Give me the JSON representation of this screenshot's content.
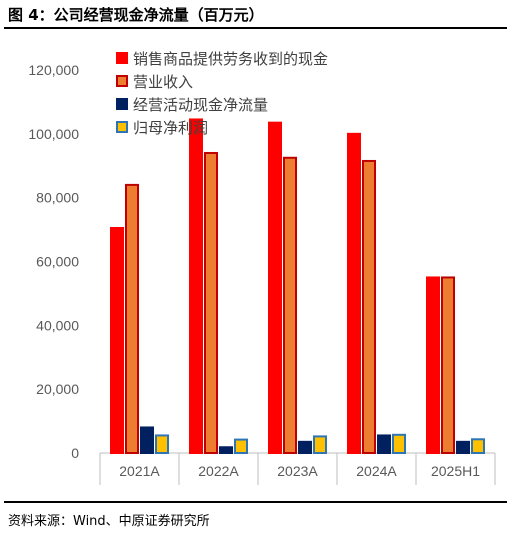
{
  "header": {
    "title": "图 4：公司经营现金净流量（百万元）"
  },
  "footer": {
    "source": "资料来源：Wind、中原证券研究所"
  },
  "chart_data": {
    "type": "bar",
    "title": "公司经营现金净流量（百万元）",
    "xlabel": "",
    "ylabel": "",
    "categories": [
      "2021A",
      "2022A",
      "2023A",
      "2024A",
      "2025H1"
    ],
    "ylim": [
      0,
      120000
    ],
    "yticks": [
      0,
      20000,
      40000,
      60000,
      80000,
      100000,
      120000
    ],
    "ytick_labels": [
      "0",
      "20,000",
      "40,000",
      "60,000",
      "80,000",
      "100,000",
      "120,000"
    ],
    "grid": false,
    "legend_position": "top",
    "series": [
      {
        "name": "销售商品提供劳务收到的现金",
        "color": "#FF0000",
        "border": "#FF0000",
        "values": [
          70500,
          104500,
          103500,
          100000,
          55000
        ]
      },
      {
        "name": "营业收入",
        "color": "#ED7D31",
        "border": "#C00000",
        "values": [
          84000,
          94000,
          92500,
          91500,
          55000
        ]
      },
      {
        "name": "经营活动现金净流量",
        "color": "#002060",
        "border": "#002060",
        "values": [
          8000,
          1800,
          3500,
          5500,
          3500
        ]
      },
      {
        "name": "归母净利润",
        "color": "#FFC000",
        "border": "#2E75B6",
        "values": [
          5500,
          4200,
          5200,
          5700,
          4300
        ]
      }
    ]
  }
}
